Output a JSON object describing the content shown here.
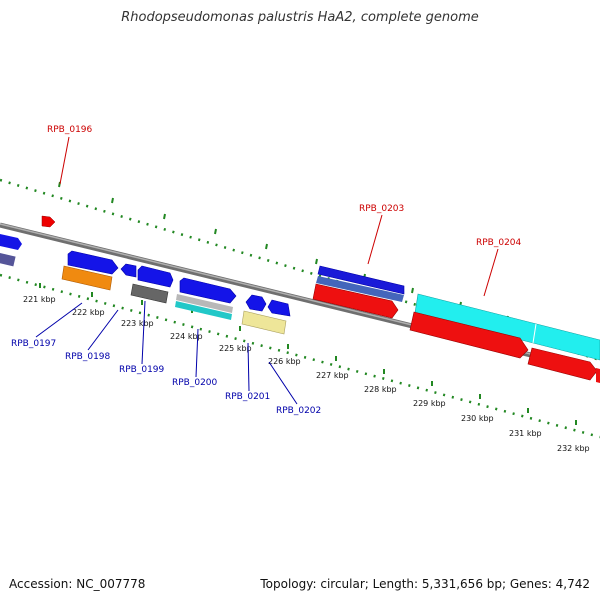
{
  "title": "Rhodopseudomonas palustris HaA2, complete genome",
  "footer": {
    "accession": "Accession: NC_007778",
    "topology": "Topology: circular; Length: 5,331,656 bp; Genes: 4,742"
  },
  "colors": {
    "plus_strand": "#0000ee",
    "minus_strand": "#ff0000",
    "backbone": "#888888",
    "tick": "#228822",
    "label_blue": "#0000aa",
    "label_red": "#cc0000"
  },
  "kbp_labels": [
    "221 kbp",
    "222 kbp",
    "223 kbp",
    "224 kbp",
    "225 kbp",
    "226 kbp",
    "227 kbp",
    "228 kbp",
    "229 kbp",
    "230 kbp",
    "231 kbp",
    "232 kbp"
  ],
  "gene_labels": {
    "top": [
      "RPB_0196",
      "RPB_0203",
      "RPB_0204"
    ],
    "bottom": [
      "RPB_0197",
      "RPB_0198",
      "RPB_0199",
      "RPB_0200",
      "RPB_0201",
      "RPB_0202"
    ]
  }
}
